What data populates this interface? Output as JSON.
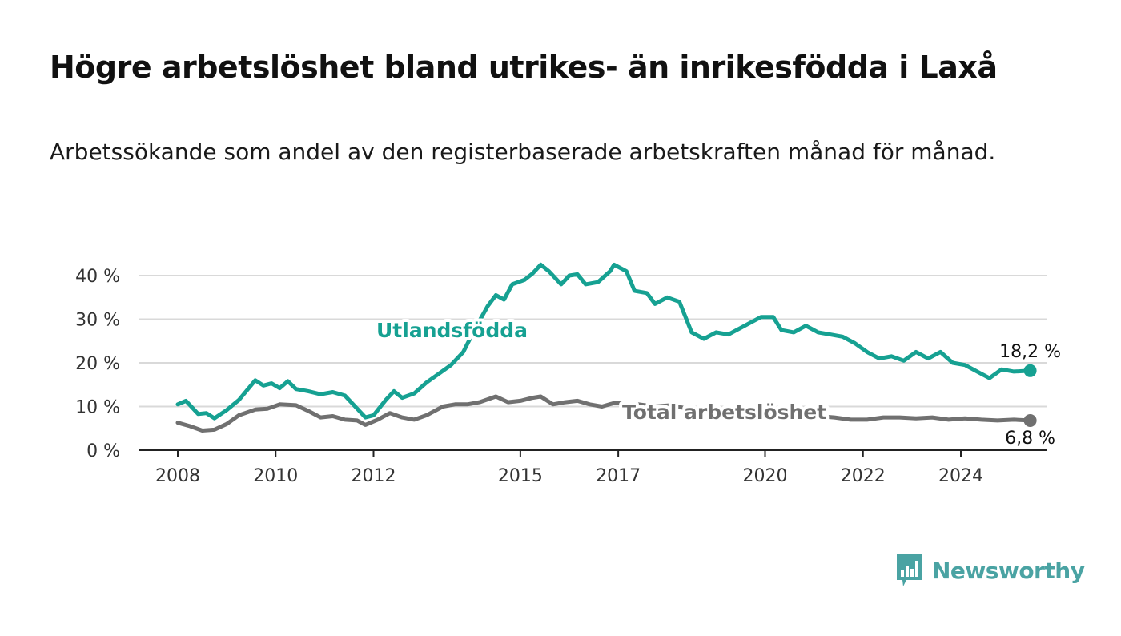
{
  "title": "Högre arbetslöshet bland utrikes- än inrikesfödda i Laxå",
  "subtitle": "Arbetssökande som andel av den registerbaserade arbetskraften månad för månad.",
  "brand": {
    "name": "Newsworthy",
    "color": "#4aa3a3",
    "icon": "bar-chart-speech-bubble-icon"
  },
  "colors": {
    "Utlandsfödda": "#16a192",
    "Total arbetslöshet": "#707070",
    "grid": "#d9d9d9",
    "axis": "#222222"
  },
  "chart_data": {
    "type": "line",
    "xlabel": "",
    "ylabel": "",
    "ylim": [
      0,
      45
    ],
    "xlim": [
      "2008-01",
      "2025-09"
    ],
    "grid": true,
    "x_ticks": [
      "2008",
      "2010",
      "2012",
      "2015",
      "2017",
      "2020",
      "2022",
      "2024"
    ],
    "y_ticks": [
      "0 %",
      "10 %",
      "20 %",
      "30 %",
      "40 %"
    ],
    "y_tick_values": [
      0,
      10,
      20,
      30,
      40
    ],
    "series": [
      {
        "name": "Utlandsfödda",
        "end_label": "18,2 %",
        "points": [
          [
            "2008-01",
            10.5
          ],
          [
            "2008-03",
            11.3
          ],
          [
            "2008-06",
            8.3
          ],
          [
            "2008-08",
            8.5
          ],
          [
            "2008-10",
            7.3
          ],
          [
            "2009-01",
            9.2
          ],
          [
            "2009-04",
            11.5
          ],
          [
            "2009-08",
            16.0
          ],
          [
            "2009-10",
            14.8
          ],
          [
            "2009-12",
            15.3
          ],
          [
            "2010-02",
            14.2
          ],
          [
            "2010-04",
            15.8
          ],
          [
            "2010-06",
            14.0
          ],
          [
            "2010-09",
            13.5
          ],
          [
            "2010-12",
            12.8
          ],
          [
            "2011-03",
            13.3
          ],
          [
            "2011-06",
            12.5
          ],
          [
            "2011-09",
            9.5
          ],
          [
            "2011-11",
            7.5
          ],
          [
            "2012-01",
            8.0
          ],
          [
            "2012-04",
            11.5
          ],
          [
            "2012-06",
            13.5
          ],
          [
            "2012-08",
            12.0
          ],
          [
            "2012-11",
            13.0
          ],
          [
            "2013-02",
            15.5
          ],
          [
            "2013-05",
            17.5
          ],
          [
            "2013-08",
            19.5
          ],
          [
            "2013-11",
            22.5
          ],
          [
            "2014-02",
            28.0
          ],
          [
            "2014-05",
            33.0
          ],
          [
            "2014-07",
            35.5
          ],
          [
            "2014-09",
            34.5
          ],
          [
            "2014-11",
            38.0
          ],
          [
            "2015-02",
            39.0
          ],
          [
            "2015-04",
            40.5
          ],
          [
            "2015-06",
            42.5
          ],
          [
            "2015-08",
            41.0
          ],
          [
            "2015-11",
            38.0
          ],
          [
            "2016-01",
            40.0
          ],
          [
            "2016-03",
            40.3
          ],
          [
            "2016-05",
            38.0
          ],
          [
            "2016-08",
            38.5
          ],
          [
            "2016-11",
            41.0
          ],
          [
            "2016-12",
            42.5
          ],
          [
            "2017-03",
            41.0
          ],
          [
            "2017-05",
            36.5
          ],
          [
            "2017-08",
            36.0
          ],
          [
            "2017-10",
            33.5
          ],
          [
            "2018-01",
            35.0
          ],
          [
            "2018-04",
            34.0
          ],
          [
            "2018-07",
            27.0
          ],
          [
            "2018-10",
            25.5
          ],
          [
            "2019-01",
            27.0
          ],
          [
            "2019-04",
            26.5
          ],
          [
            "2019-07",
            28.0
          ],
          [
            "2019-10",
            29.5
          ],
          [
            "2019-12",
            30.5
          ],
          [
            "2020-03",
            30.5
          ],
          [
            "2020-05",
            27.5
          ],
          [
            "2020-08",
            27.0
          ],
          [
            "2020-11",
            28.5
          ],
          [
            "2021-02",
            27.0
          ],
          [
            "2021-05",
            26.5
          ],
          [
            "2021-08",
            26.0
          ],
          [
            "2021-11",
            24.5
          ],
          [
            "2022-02",
            22.5
          ],
          [
            "2022-05",
            21.0
          ],
          [
            "2022-08",
            21.5
          ],
          [
            "2022-11",
            20.5
          ],
          [
            "2023-02",
            22.5
          ],
          [
            "2023-05",
            21.0
          ],
          [
            "2023-08",
            22.5
          ],
          [
            "2023-11",
            20.0
          ],
          [
            "2024-02",
            19.5
          ],
          [
            "2024-05",
            18.0
          ],
          [
            "2024-08",
            16.5
          ],
          [
            "2024-11",
            18.5
          ],
          [
            "2025-02",
            18.0
          ],
          [
            "2025-06",
            18.2
          ]
        ]
      },
      {
        "name": "Total arbetslöshet",
        "end_label": "6,8 %",
        "points": [
          [
            "2008-01",
            6.3
          ],
          [
            "2008-04",
            5.5
          ],
          [
            "2008-07",
            4.5
          ],
          [
            "2008-10",
            4.7
          ],
          [
            "2009-01",
            6.0
          ],
          [
            "2009-04",
            8.0
          ],
          [
            "2009-08",
            9.3
          ],
          [
            "2009-11",
            9.5
          ],
          [
            "2010-02",
            10.5
          ],
          [
            "2010-06",
            10.3
          ],
          [
            "2010-09",
            9.0
          ],
          [
            "2010-12",
            7.5
          ],
          [
            "2011-03",
            7.8
          ],
          [
            "2011-06",
            7.0
          ],
          [
            "2011-09",
            6.8
          ],
          [
            "2011-11",
            5.8
          ],
          [
            "2012-02",
            7.0
          ],
          [
            "2012-05",
            8.5
          ],
          [
            "2012-08",
            7.5
          ],
          [
            "2012-11",
            7.0
          ],
          [
            "2013-02",
            8.0
          ],
          [
            "2013-06",
            10.0
          ],
          [
            "2013-09",
            10.5
          ],
          [
            "2013-12",
            10.5
          ],
          [
            "2014-03",
            11.0
          ],
          [
            "2014-07",
            12.3
          ],
          [
            "2014-10",
            11.0
          ],
          [
            "2015-01",
            11.3
          ],
          [
            "2015-04",
            12.0
          ],
          [
            "2015-06",
            12.3
          ],
          [
            "2015-09",
            10.5
          ],
          [
            "2015-12",
            11.0
          ],
          [
            "2016-03",
            11.3
          ],
          [
            "2016-06",
            10.5
          ],
          [
            "2016-09",
            10.0
          ],
          [
            "2016-12",
            10.8
          ],
          [
            "2017-03",
            10.8
          ],
          [
            "2017-06",
            10.5
          ],
          [
            "2017-10",
            10.0
          ],
          [
            "2018-02",
            10.3
          ],
          [
            "2018-06",
            9.5
          ],
          [
            "2018-10",
            9.0
          ],
          [
            "2019-02",
            9.0
          ],
          [
            "2019-06",
            8.5
          ],
          [
            "2019-10",
            8.5
          ],
          [
            "2020-02",
            8.3
          ],
          [
            "2020-06",
            8.5
          ],
          [
            "2020-10",
            8.0
          ],
          [
            "2021-02",
            7.8
          ],
          [
            "2021-06",
            7.5
          ],
          [
            "2021-10",
            7.0
          ],
          [
            "2022-02",
            7.0
          ],
          [
            "2022-06",
            7.5
          ],
          [
            "2022-10",
            7.5
          ],
          [
            "2023-02",
            7.3
          ],
          [
            "2023-06",
            7.5
          ],
          [
            "2023-10",
            7.0
          ],
          [
            "2024-02",
            7.3
          ],
          [
            "2024-06",
            7.0
          ],
          [
            "2024-10",
            6.8
          ],
          [
            "2025-02",
            7.0
          ],
          [
            "2025-06",
            6.8
          ]
        ]
      }
    ]
  }
}
